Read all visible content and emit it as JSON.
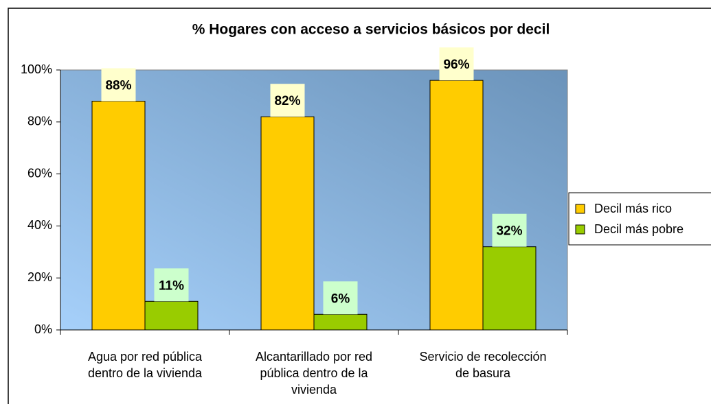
{
  "chart_data": {
    "type": "bar",
    "title": "% Hogares con acceso a servicios básicos por decil",
    "categories": [
      "Agua por red pública dentro de la vivienda",
      "Alcantarillado por red pública dentro de la vivienda",
      "Servicio de recolección de basura"
    ],
    "series": [
      {
        "name": "Decil más rico",
        "color": "#ffcc00",
        "values": [
          88,
          82,
          96
        ],
        "value_labels": [
          "88%",
          "82%",
          "96%"
        ],
        "label_bg": "#ffffcc"
      },
      {
        "name": "Decil más pobre",
        "color": "#99cc00",
        "values": [
          11,
          6,
          32
        ],
        "value_labels": [
          "11%",
          "6%",
          "32%"
        ],
        "label_bg": "#ccffcc"
      }
    ],
    "ylim": [
      0,
      100
    ],
    "yticks": [
      {
        "value": 0,
        "label": "0%"
      },
      {
        "value": 20,
        "label": "20%"
      },
      {
        "value": 40,
        "label": "40%"
      },
      {
        "value": 60,
        "label": "60%"
      },
      {
        "value": 80,
        "label": "80%"
      },
      {
        "value": 100,
        "label": "100%"
      }
    ],
    "legend": "right"
  }
}
